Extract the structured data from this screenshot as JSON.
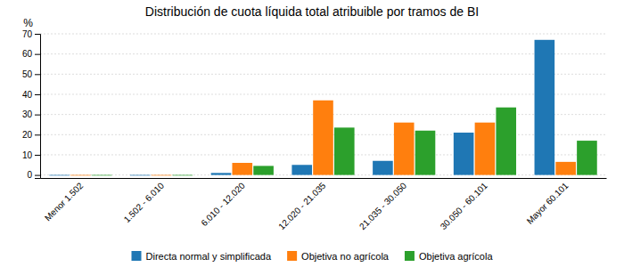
{
  "chart_data": {
    "type": "bar",
    "title": "Distribución de cuota líquida total atribuible por tramos de BI",
    "categories": [
      "Menor 1.502",
      "1.502 - 6.010",
      "6.010 - 12.020",
      "12.020 - 21.035",
      "21.035 - 30.050",
      "30.050 - 60.101",
      "Mayor 60.101"
    ],
    "series": [
      {
        "name": "Directa normal y simplificada",
        "values": [
          -0.3,
          -0.3,
          1.0,
          5.0,
          7.0,
          21.0,
          67.0
        ]
      },
      {
        "name": "Objetiva no agrícola",
        "values": [
          -0.3,
          -0.3,
          6.0,
          37.0,
          26.0,
          26.0,
          6.5
        ]
      },
      {
        "name": "Objetiva agrícola",
        "values": [
          -0.3,
          -0.3,
          4.5,
          23.5,
          22.0,
          33.5,
          17.0
        ]
      }
    ],
    "ylabel": "%",
    "ylim": [
      -1.5,
      70
    ],
    "yticks": [
      0,
      10,
      20,
      30,
      40,
      50,
      60,
      70
    ],
    "grid": true,
    "legend": "bottom"
  }
}
